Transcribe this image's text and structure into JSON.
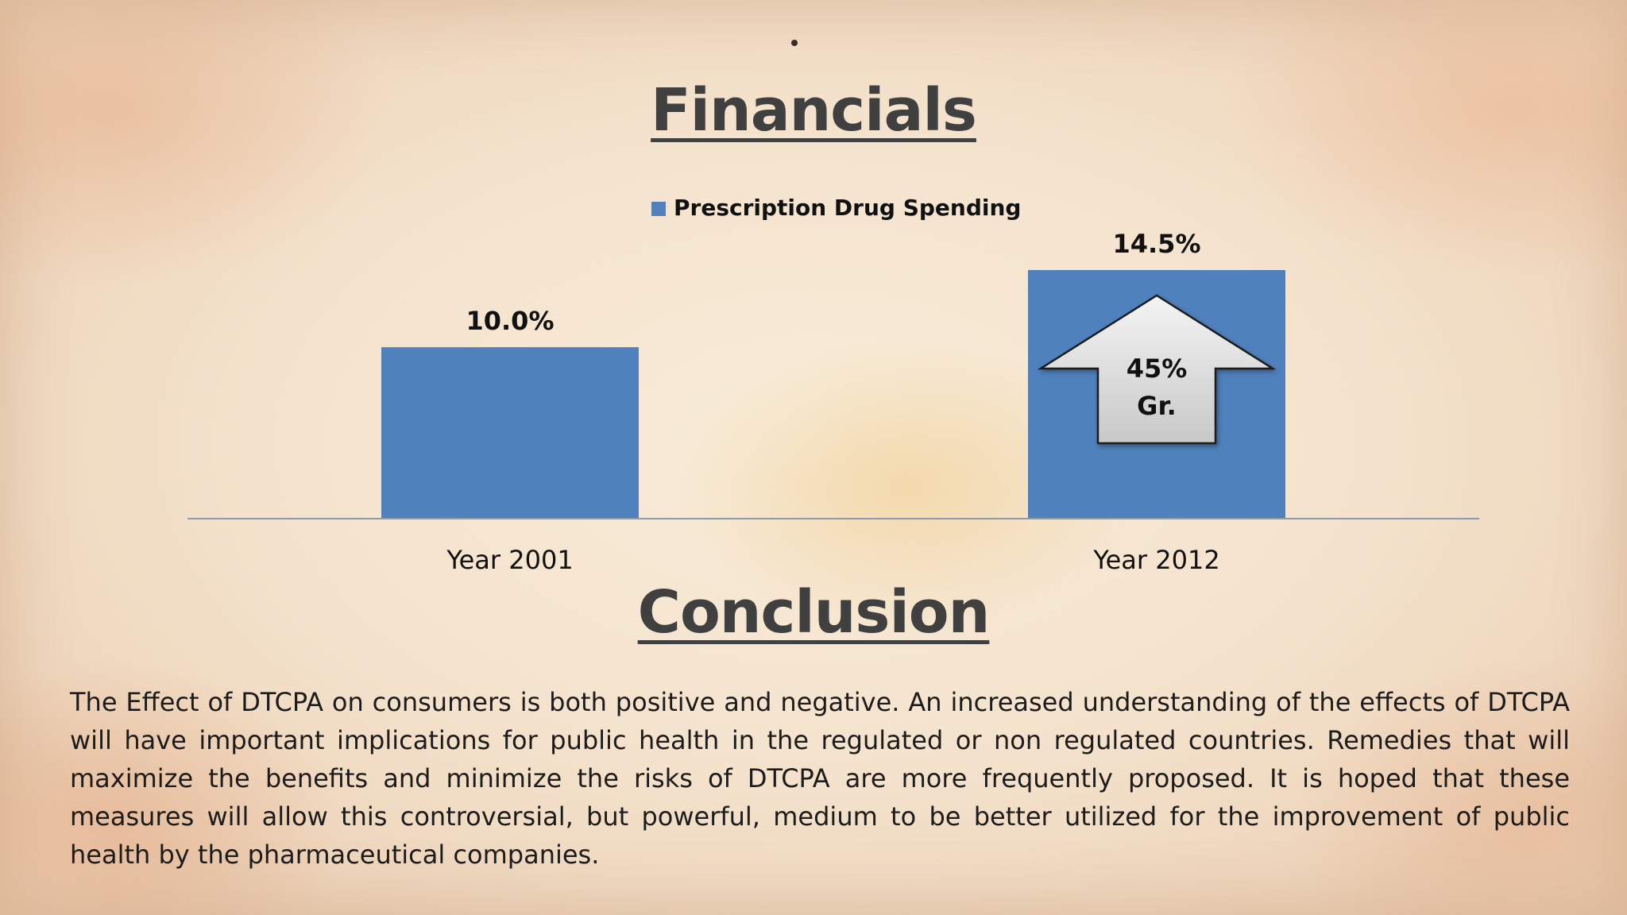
{
  "slide": {
    "financials_title": "Financials",
    "conclusion_title": "Conclusion",
    "conclusion_text": "The Effect of DTCPA on consumers is both positive and negative. An increased understanding of the effects of DTCPA will have important implications for public health in the regulated or non regulated countries. Remedies that will maximize the benefits and minimize the risks of DTCPA are more frequently proposed. It is hoped that these measures will allow this controversial, but powerful, medium to be better utilized for the improvement of public health by the pharmaceutical companies."
  },
  "chart_data": {
    "type": "bar",
    "categories": [
      "Year 2001",
      "Year 2012"
    ],
    "series": [
      {
        "name": "Prescription Drug Spending",
        "values": [
          10.0,
          14.5
        ],
        "labels": [
          "10.0%",
          "14.5%"
        ],
        "color": "#4f81bd"
      }
    ],
    "legend": "top",
    "grid": false,
    "ylim": [
      0,
      14.5
    ],
    "annotation": {
      "shape": "up-arrow",
      "lines": [
        "45%",
        "Gr."
      ],
      "category": "Year 2012"
    }
  }
}
